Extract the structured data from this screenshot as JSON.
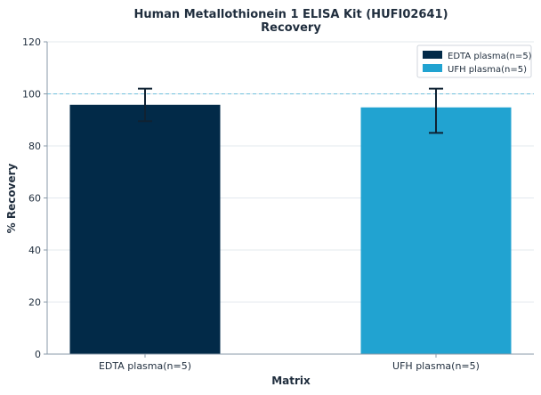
{
  "chart_data": {
    "type": "bar",
    "title": "Human Metallothionein 1 ELISA Kit (HUFI02641)",
    "subtitle": "Recovery",
    "xlabel": "Matrix",
    "ylabel": "% Recovery",
    "categories": [
      "EDTA plasma(n=5)",
      "UFH plasma(n=5)"
    ],
    "values": [
      95.8,
      94.8
    ],
    "error_low": [
      89.5,
      85.0
    ],
    "error_high": [
      102.0,
      102.0
    ],
    "bar_colors": [
      "#022a48",
      "#21a3d1"
    ],
    "ylim": [
      0,
      120
    ],
    "yticks": [
      0,
      20,
      40,
      60,
      80,
      100,
      120
    ],
    "reference_line": 100,
    "reference_color": "#6dbfdc",
    "grid": true,
    "legend": {
      "placement": "top-right",
      "entries": [
        "EDTA plasma(n=5)",
        "UFH plasma(n=5)"
      ]
    }
  }
}
